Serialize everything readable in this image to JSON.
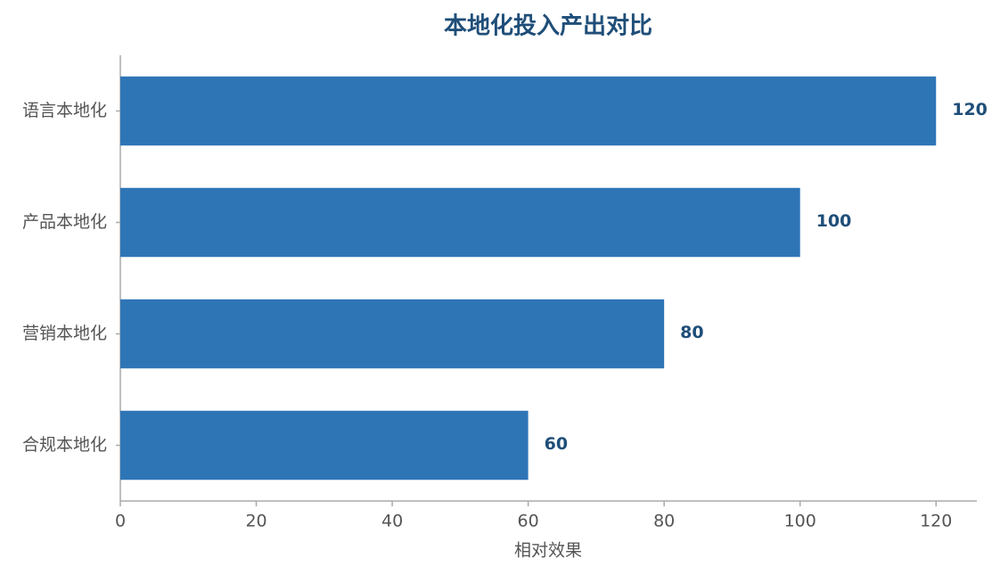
{
  "chart_data": {
    "type": "barh",
    "title": "本地化投入产出对比",
    "xlabel": "相对效果",
    "categories": [
      "语言本地化",
      "产品本地化",
      "营销本地化",
      "合规本地化"
    ],
    "values": [
      120,
      100,
      80,
      60
    ],
    "color": "#2e75b6",
    "xlim": [
      0,
      126
    ],
    "xticks": [
      0,
      20,
      40,
      60,
      80,
      100,
      120
    ],
    "grid": false
  }
}
